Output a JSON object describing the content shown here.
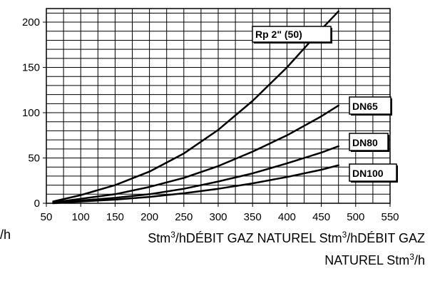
{
  "chart_data": {
    "type": "line",
    "title": "",
    "xlabel_lines": [
      [
        "Stm",
        "3",
        "/hDÉBIT GAZ NATUREL Stm",
        "3",
        "/hDÉBIT GAZ"
      ],
      [
        "NATUREL Stm",
        "3",
        "/h"
      ]
    ],
    "left_fragment": "/h",
    "ylabel": "",
    "xlim": [
      50,
      550
    ],
    "ylim": [
      0,
      215
    ],
    "x_ticks": [
      50,
      100,
      150,
      200,
      250,
      300,
      350,
      400,
      450,
      500,
      550
    ],
    "y_ticks": [
      0,
      50,
      100,
      150,
      200
    ],
    "grid": true,
    "x_grid_step": 25,
    "y_grid_step": 10,
    "series": [
      {
        "name": "Rp 2\" (50)",
        "x": [
          60,
          100,
          150,
          200,
          250,
          300,
          350,
          400,
          450,
          475
        ],
        "y": [
          2,
          9,
          20,
          35,
          55,
          81,
          113,
          150,
          192,
          212
        ]
      },
      {
        "name": "DN65",
        "x": [
          60,
          100,
          150,
          200,
          250,
          300,
          350,
          400,
          450,
          475
        ],
        "y": [
          1,
          5,
          10,
          18,
          28,
          41,
          57,
          75,
          96,
          108
        ]
      },
      {
        "name": "DN80",
        "x": [
          60,
          100,
          150,
          200,
          250,
          300,
          350,
          400,
          450,
          475
        ],
        "y": [
          1,
          3,
          6,
          10,
          16,
          24,
          33,
          44,
          56,
          63
        ]
      },
      {
        "name": "DN100",
        "x": [
          60,
          100,
          150,
          200,
          250,
          300,
          350,
          400,
          450,
          475
        ],
        "y": [
          0,
          2,
          4,
          7,
          11,
          16,
          22,
          29,
          37,
          42
        ]
      }
    ],
    "colors": {
      "line": "#000000",
      "grid": "#000000",
      "label_box_fill": "#ffffff"
    }
  }
}
